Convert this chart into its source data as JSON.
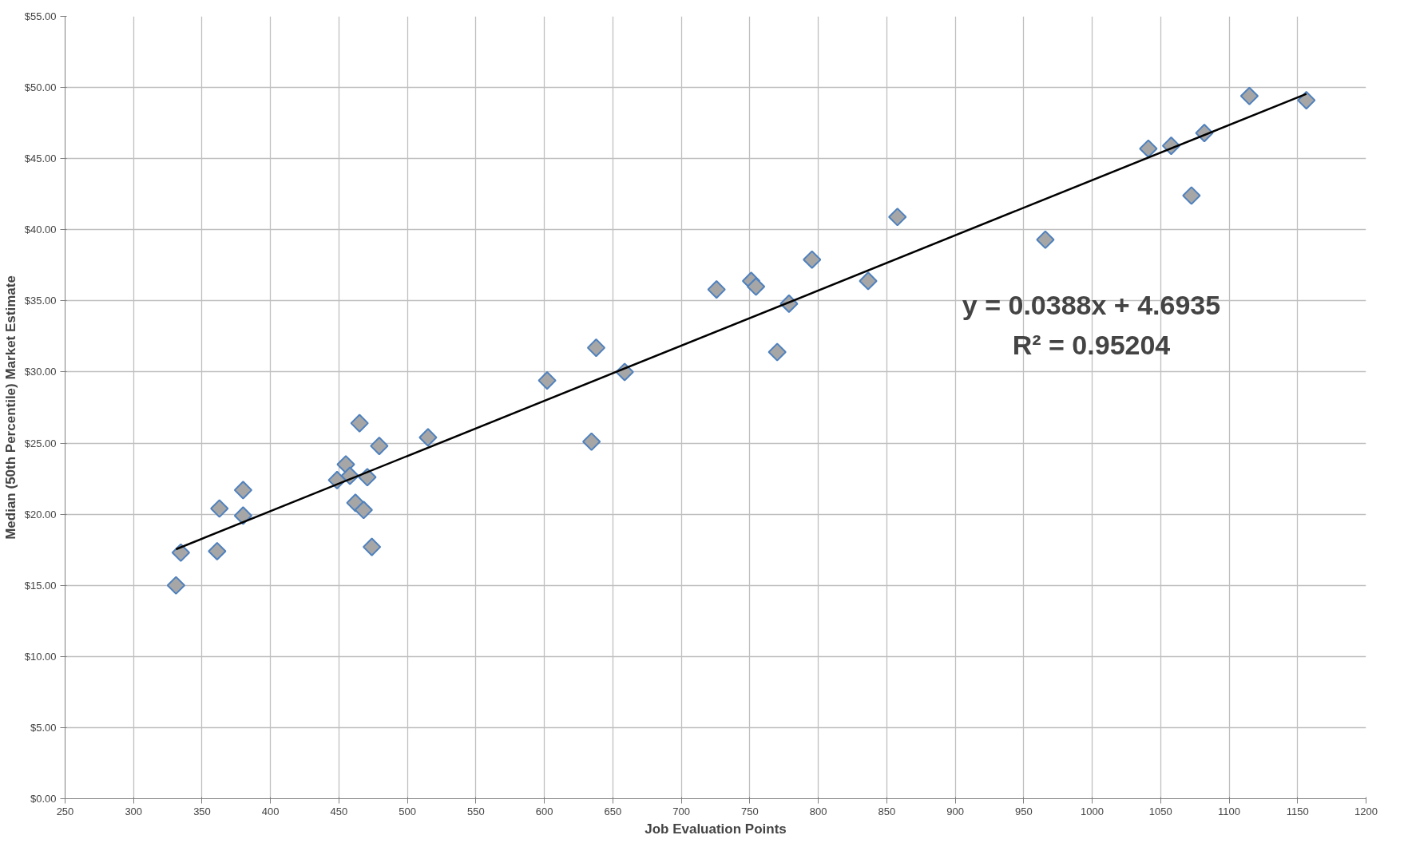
{
  "chart_data": {
    "type": "scatter",
    "xlabel": "Job Evaluation Points",
    "ylabel": "Median (50th Percentile) Market Estimate",
    "annotations": [
      "y = 0.0388x + 4.6935",
      "R² = 0.95204"
    ],
    "series": [
      {
        "color": "#a6a6a6",
        "marker": "diamond",
        "x": [
          331,
          334.5,
          361,
          362.7,
          380,
          380,
          448.6,
          455,
          458,
          462,
          465,
          468,
          470.7,
          474,
          479.4,
          515,
          602,
          634.4,
          637.8,
          658.6,
          725.7,
          751,
          754.5,
          770,
          778.6,
          795.4,
          836.4,
          857.8,
          965.8,
          1041,
          1057.7,
          1072.5,
          1081.9,
          1114.8,
          1156.4
        ],
        "values": [
          15.0,
          17.3,
          17.4,
          20.4,
          19.9,
          21.7,
          22.4,
          23.5,
          22.7,
          20.8,
          26.4,
          20.3,
          22.6,
          17.7,
          24.8,
          25.4,
          29.4,
          25.1,
          31.7,
          30.0,
          35.8,
          36.4,
          36.0,
          31.4,
          34.8,
          37.9,
          36.4,
          40.9,
          39.3,
          45.7,
          45.9,
          42.4,
          46.8,
          49.4,
          49.1
        ]
      },
      {
        "type": "line",
        "color": "#000000",
        "marker": "none",
        "x": [
          331,
          1156.4
        ],
        "values": [
          17.54,
          49.55
        ]
      }
    ],
    "xlim": [
      250,
      1200
    ],
    "xticks": [
      250,
      300,
      350,
      400,
      450,
      500,
      550,
      600,
      650,
      700,
      750,
      800,
      850,
      900,
      950,
      1000,
      1050,
      1100,
      1150,
      1200
    ],
    "ylim": [
      0,
      55
    ],
    "yticks": [
      {
        "value": 0,
        "label": "$0.00"
      },
      {
        "value": 5,
        "label": "$5.00"
      },
      {
        "value": 10,
        "label": "$10.00"
      },
      {
        "value": 15,
        "label": "$15.00"
      },
      {
        "value": 20,
        "label": "$20.00"
      },
      {
        "value": 25,
        "label": "$25.00"
      },
      {
        "value": 30,
        "label": "$30.00"
      },
      {
        "value": 35,
        "label": "$35.00"
      },
      {
        "value": 40,
        "label": "$40.00"
      },
      {
        "value": 45,
        "label": "$45.00"
      },
      {
        "value": 50,
        "label": "$50.00"
      },
      {
        "value": 55,
        "label": "$55.00"
      }
    ],
    "grid": true
  }
}
